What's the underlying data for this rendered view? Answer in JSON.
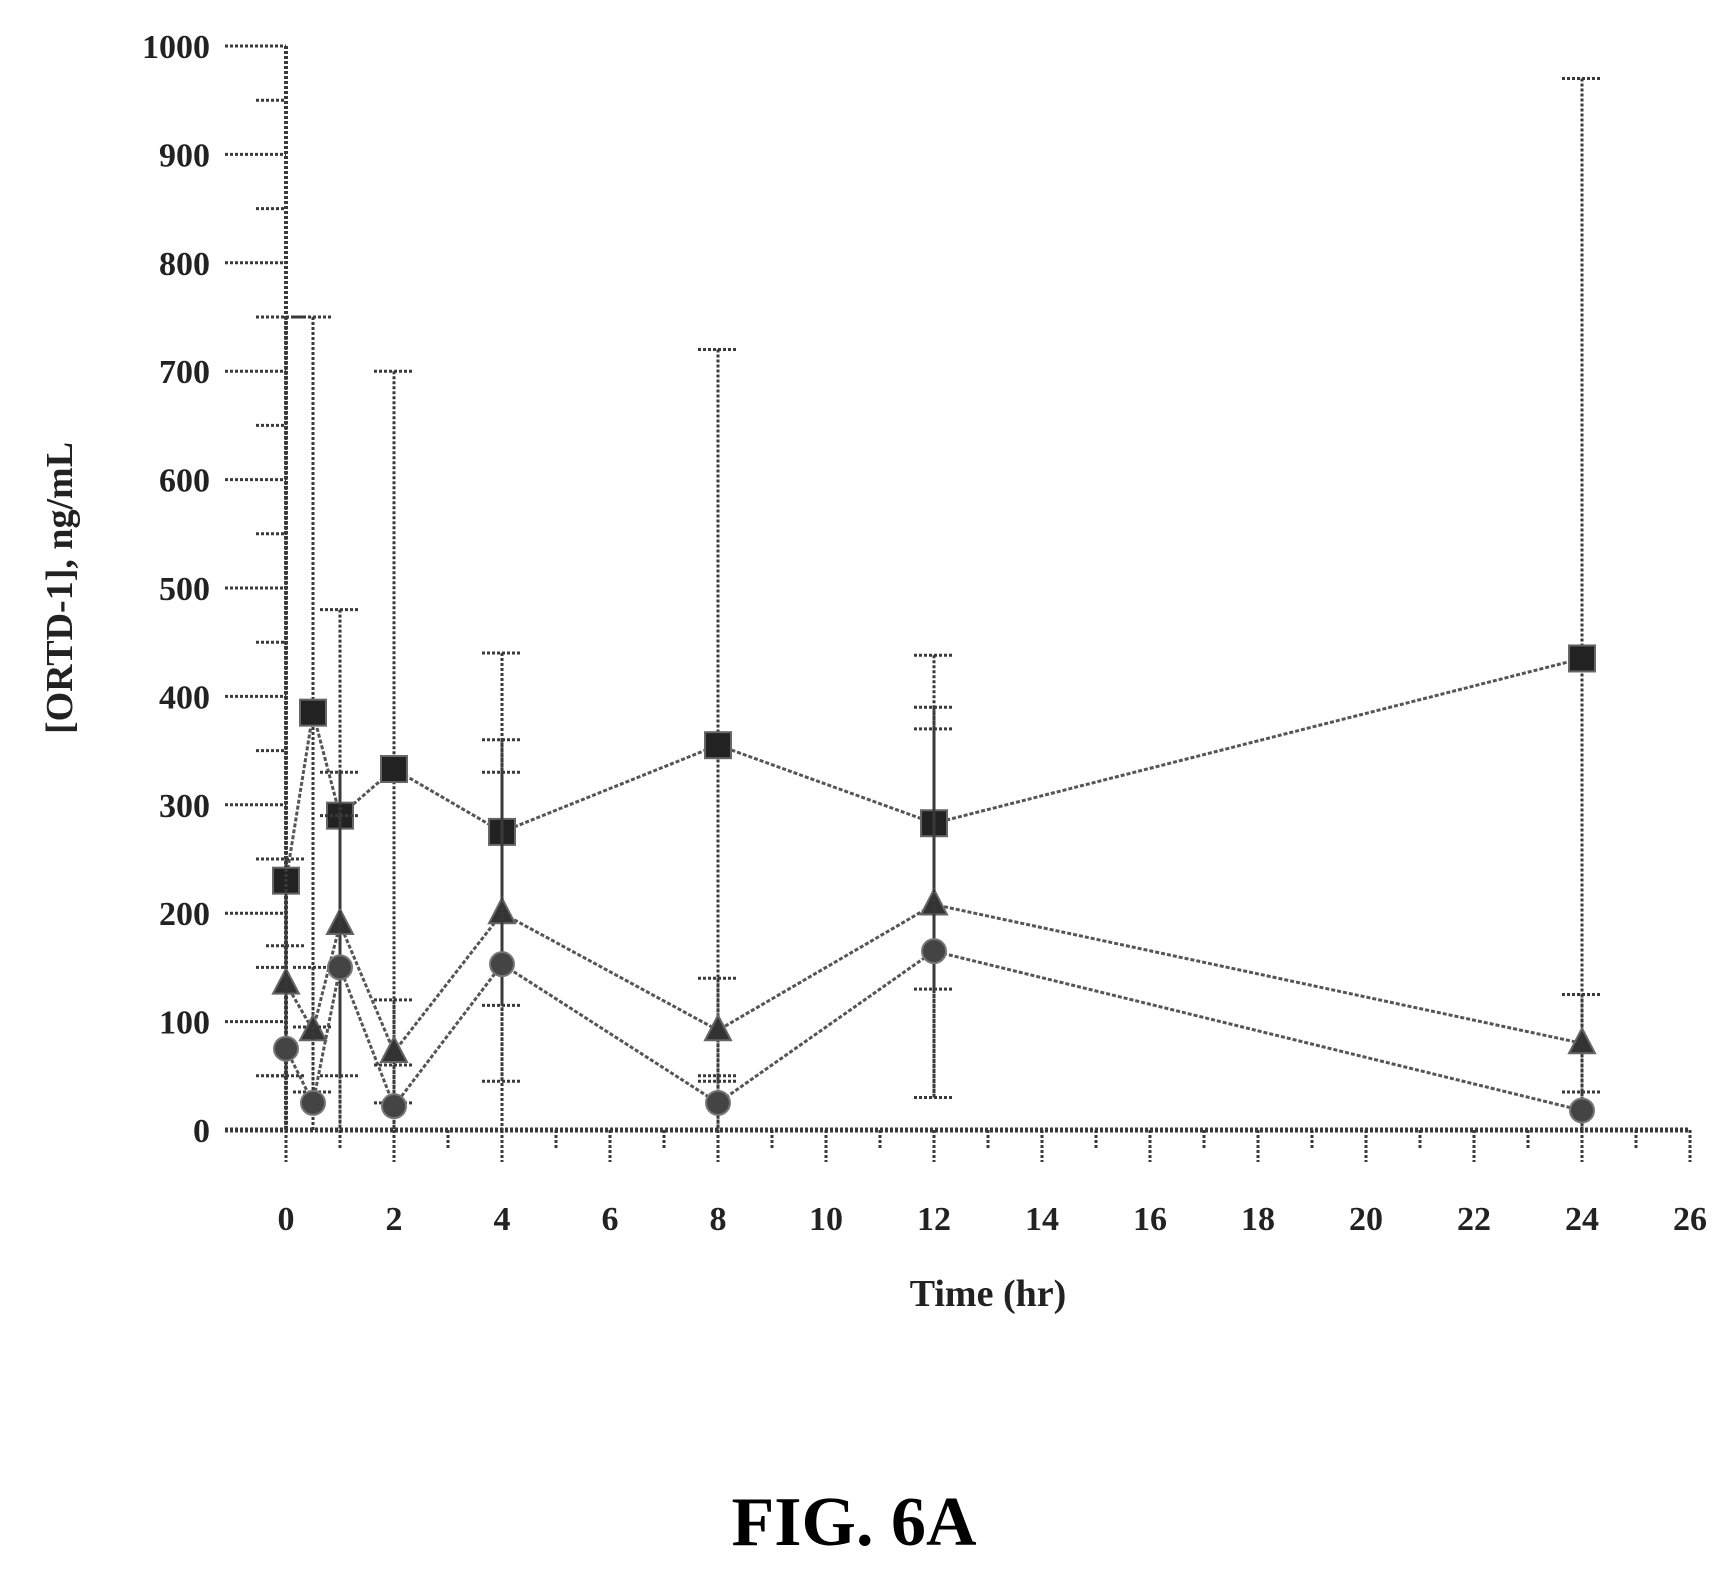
{
  "figure_caption": "FIG. 6A",
  "chart_data": {
    "type": "line",
    "xlabel": "Time (hr)",
    "ylabel": "[ORTD-1], ng/mL",
    "xlim": [
      0,
      26
    ],
    "ylim": [
      0,
      1000
    ],
    "xticks": [
      0,
      2,
      4,
      6,
      8,
      10,
      12,
      14,
      16,
      18,
      20,
      22,
      24,
      26
    ],
    "yticks": [
      0,
      100,
      200,
      300,
      400,
      500,
      600,
      700,
      800,
      900,
      1000
    ],
    "grid": false,
    "legend": "none",
    "series": [
      {
        "marker": "square",
        "x": [
          0,
          0.5,
          1,
          2,
          4,
          8,
          12,
          24
        ],
        "y": [
          230,
          385,
          290,
          333,
          275,
          355,
          283,
          435
        ],
        "err_upper": [
          750,
          750,
          480,
          700,
          440,
          720,
          438,
          970
        ],
        "err_lower": [
          0,
          0,
          0,
          0,
          0,
          0,
          30,
          0
        ]
      },
      {
        "marker": "triangle",
        "x": [
          0,
          0.5,
          1,
          2,
          4,
          8,
          12,
          24
        ],
        "y": [
          135,
          92,
          190,
          72,
          200,
          92,
          208,
          80
        ],
        "err_upper": [
          250,
          150,
          330,
          120,
          360,
          140,
          390,
          125
        ],
        "err_lower": [
          50,
          35,
          50,
          25,
          115,
          45,
          130,
          35
        ]
      },
      {
        "marker": "circle",
        "x": [
          0,
          0.5,
          1,
          2,
          4,
          8,
          12,
          24
        ],
        "y": [
          75,
          25,
          150,
          22,
          153,
          25,
          165,
          18
        ],
        "err_upper": [
          170,
          95,
          290,
          60,
          330,
          50,
          370,
          35
        ],
        "err_lower": [
          0,
          0,
          0,
          0,
          45,
          0,
          30,
          0
        ]
      }
    ]
  }
}
